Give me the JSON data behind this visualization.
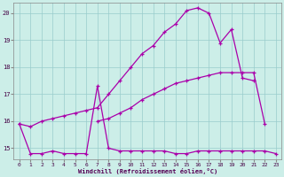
{
  "xlabel": "Windchill (Refroidissement éolien,°C)",
  "bg_color": "#cceee8",
  "grid_color": "#99cccc",
  "line_color": "#aa00aa",
  "xlim": [
    -0.5,
    23.5
  ],
  "ylim": [
    14.6,
    20.4
  ],
  "yticks": [
    15,
    16,
    17,
    18,
    19,
    20
  ],
  "xticks": [
    0,
    1,
    2,
    3,
    4,
    5,
    6,
    7,
    8,
    9,
    10,
    11,
    12,
    13,
    14,
    15,
    16,
    17,
    18,
    19,
    20,
    21,
    22,
    23
  ],
  "series": [
    {
      "x": [
        0,
        1,
        2,
        3,
        4,
        5,
        6,
        7,
        8,
        9,
        10,
        11,
        12,
        13,
        14,
        15,
        16,
        17,
        18,
        19,
        20,
        21,
        22,
        23
      ],
      "y": [
        15.9,
        14.8,
        14.8,
        14.9,
        14.8,
        14.8,
        14.8,
        17.3,
        15.0,
        14.9,
        14.9,
        14.9,
        14.9,
        14.9,
        14.8,
        14.8,
        14.9,
        14.9,
        14.9,
        14.9,
        14.9,
        14.9,
        14.9,
        14.8
      ]
    },
    {
      "x": [
        0,
        1,
        2,
        3,
        4,
        5,
        6,
        7,
        8,
        9,
        10,
        11,
        12,
        13,
        14,
        15,
        16,
        17,
        18,
        19,
        20,
        21
      ],
      "y": [
        15.9,
        15.8,
        16.0,
        16.1,
        16.2,
        16.3,
        16.4,
        16.5,
        17.0,
        17.5,
        18.0,
        18.5,
        18.8,
        19.3,
        19.6,
        20.1,
        20.2,
        20.0,
        18.9,
        19.4,
        17.6,
        17.5
      ]
    },
    {
      "x": [
        7,
        8,
        9,
        10,
        11,
        12,
        13,
        14,
        15,
        16,
        17,
        18,
        19,
        20,
        21,
        22
      ],
      "y": [
        16.0,
        16.1,
        16.3,
        16.5,
        16.8,
        17.0,
        17.2,
        17.4,
        17.5,
        17.6,
        17.7,
        17.8,
        17.8,
        17.8,
        17.8,
        15.9
      ]
    }
  ]
}
